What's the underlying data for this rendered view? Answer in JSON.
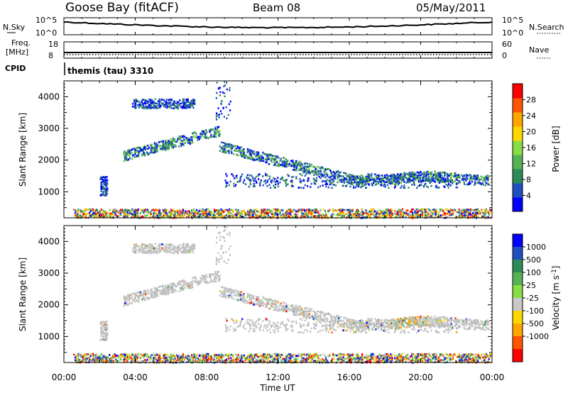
{
  "header": {
    "station": "Goose Bay (fitACF)",
    "beam": "Beam 08",
    "date": "05/May/2011"
  },
  "top_panels": {
    "nsky": {
      "left_label": "N.Sky",
      "right_label": "N.Search",
      "tick_top": "10^5",
      "tick_bottom": "10^0",
      "rtick_top": "10^5",
      "rtick_bottom": "10^0"
    },
    "freq": {
      "left_label_1": "Freq.",
      "left_label_2": "[MHz]",
      "right_label": "Nave",
      "tick_top": "18",
      "tick_bottom": "8",
      "rtick_top": "60",
      "rtick_bottom": "0"
    },
    "cpid": {
      "label": "CPID",
      "value": "themis (tau) 3310"
    }
  },
  "colors": {
    "power_scale": [
      "#0000ff",
      "#1f4fbf",
      "#2e8b57",
      "#55b255",
      "#88dd44",
      "#ffd700",
      "#ffa500",
      "#ff5500",
      "#ff0000"
    ],
    "velocity_scale": [
      "#0000ff",
      "#1f4fbf",
      "#2e8b57",
      "#55b255",
      "#88dd44",
      "#c8c8c8",
      "#ffd700",
      "#ffa500",
      "#ff5500",
      "#ff0000"
    ],
    "ground_scatter": "#c0c0c0"
  },
  "chart_data": [
    {
      "type": "heatmap",
      "name": "power-panel",
      "ylabel": "Slant Range [km]",
      "xlim": [
        "00:00",
        "24:00"
      ],
      "ylim": [
        180,
        4500
      ],
      "y_ticks": [
        "1000",
        "2000",
        "3000",
        "4000"
      ],
      "colorbar_label": "Power [dB]",
      "colorbar_ticks": [
        "4",
        "8",
        "12",
        "16",
        "20",
        "24",
        "28"
      ],
      "colorbar_range": [
        0,
        32
      ]
    },
    {
      "type": "heatmap",
      "name": "velocity-panel",
      "ylabel": "Slant Range [km]",
      "xlabel": "Time UT",
      "xlim": [
        "00:00",
        "24:00"
      ],
      "ylim": [
        180,
        4500
      ],
      "x_ticks": [
        "00:00",
        "04:00",
        "08:00",
        "12:00",
        "16:00",
        "20:00",
        "00:00"
      ],
      "y_ticks": [
        "1000",
        "2000",
        "3000",
        "4000"
      ],
      "colorbar_label": "Velocity [m s",
      "colorbar_label_sup": "-1",
      "colorbar_label_end": "]",
      "colorbar_ticks": [
        "1000",
        "500",
        "100",
        "25",
        "-25",
        "-100",
        "-500",
        "-1000"
      ]
    }
  ]
}
